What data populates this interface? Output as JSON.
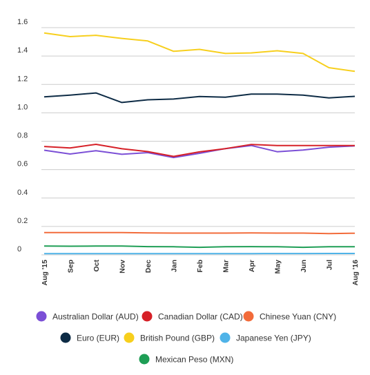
{
  "chart_data": {
    "type": "line",
    "categories": [
      "Aug '15",
      "Sep",
      "Oct",
      "Nov",
      "Dec",
      "Jan",
      "Feb",
      "Mar",
      "Apr",
      "May",
      "Jun",
      "Jul",
      "Aug '16"
    ],
    "ylim": [
      0,
      1.6
    ],
    "y_ticks": [
      "0",
      "0.2",
      "0.4",
      "0.6",
      "0.8",
      "1.0",
      "1.2",
      "1.4",
      "1.6"
    ],
    "grid": true,
    "legend_position": "bottom",
    "series": [
      {
        "name": "Australian Dollar (AUD)",
        "color": "#7b4fd6",
        "values": [
          0.737,
          0.71,
          0.733,
          0.708,
          0.72,
          0.685,
          0.715,
          0.748,
          0.77,
          0.726,
          0.738,
          0.758,
          0.767
        ]
      },
      {
        "name": "Canadian Dollar (CAD)",
        "color": "#d62027",
        "values": [
          0.763,
          0.753,
          0.778,
          0.747,
          0.727,
          0.693,
          0.725,
          0.748,
          0.777,
          0.77,
          0.77,
          0.77,
          0.77
        ]
      },
      {
        "name": "Chinese Yuan (CNY)",
        "color": "#f26b3a",
        "values": [
          0.157,
          0.157,
          0.157,
          0.157,
          0.154,
          0.153,
          0.153,
          0.153,
          0.154,
          0.153,
          0.153,
          0.15,
          0.152
        ]
      },
      {
        "name": "Euro (EUR)",
        "color": "#0d2b45",
        "values": [
          1.112,
          1.125,
          1.14,
          1.073,
          1.092,
          1.097,
          1.115,
          1.11,
          1.132,
          1.132,
          1.125,
          1.105,
          1.116
        ]
      },
      {
        "name": "British Pound (GBP)",
        "color": "#f7cf1d",
        "values": [
          1.562,
          1.537,
          1.546,
          1.524,
          1.506,
          1.433,
          1.447,
          1.418,
          1.422,
          1.437,
          1.418,
          1.318,
          1.292
        ]
      },
      {
        "name": "Japanese Yen (JPY)",
        "color": "#4fb3e8",
        "values": [
          0.0082,
          0.0082,
          0.0083,
          0.0082,
          0.0081,
          0.0083,
          0.0087,
          0.0088,
          0.0089,
          0.0092,
          0.0094,
          0.0096,
          0.0098
        ]
      },
      {
        "name": "Mexican Peso (MXN)",
        "color": "#1e9e55",
        "values": [
          0.062,
          0.061,
          0.062,
          0.062,
          0.058,
          0.057,
          0.053,
          0.057,
          0.058,
          0.057,
          0.053,
          0.057,
          0.057
        ]
      }
    ]
  }
}
